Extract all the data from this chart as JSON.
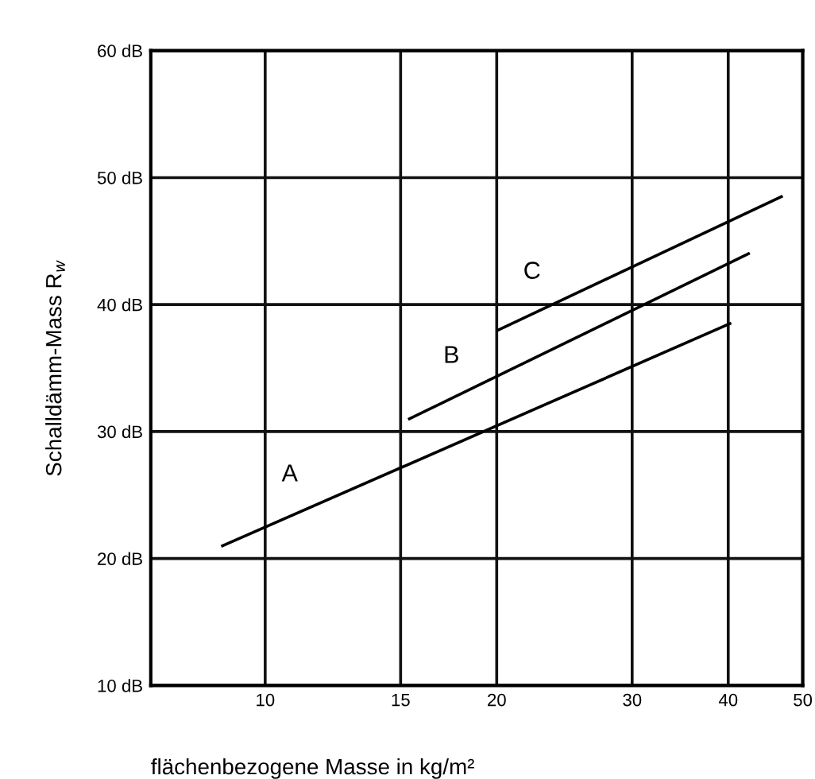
{
  "chart_data": {
    "type": "line",
    "xlabel": "flächenbezogene Masse in kg/m²",
    "ylabel": "Schalldämm-Mass R$_{w}$",
    "log": "x",
    "grid": true,
    "legend": false,
    "marker": "none",
    "line_style": "solid",
    "xlim": [
      7.1,
      50
    ],
    "xticks": [
      10,
      15,
      20,
      30,
      40,
      50
    ],
    "ylim": [
      10,
      60
    ],
    "yticks": [
      {
        "value": 10,
        "label": "10 dB"
      },
      {
        "value": 20,
        "label": "20 dB"
      },
      {
        "value": 30,
        "label": "30 dB"
      },
      {
        "value": 40,
        "label": "40 dB"
      },
      {
        "value": 50,
        "label": "50 dB"
      },
      {
        "value": 60,
        "label": "60 dB"
      }
    ],
    "series": [
      {
        "name": "A",
        "color": "#000000",
        "x": [
          8.8,
          40.2
        ],
        "values": [
          21,
          38.5
        ]
      },
      {
        "name": "B",
        "color": "#000000",
        "x": [
          15.4,
          42.5
        ],
        "values": [
          31,
          44
        ]
      },
      {
        "name": "C",
        "color": "#000000",
        "x": [
          20.1,
          46.9
        ],
        "values": [
          38,
          48.5
        ]
      }
    ]
  }
}
